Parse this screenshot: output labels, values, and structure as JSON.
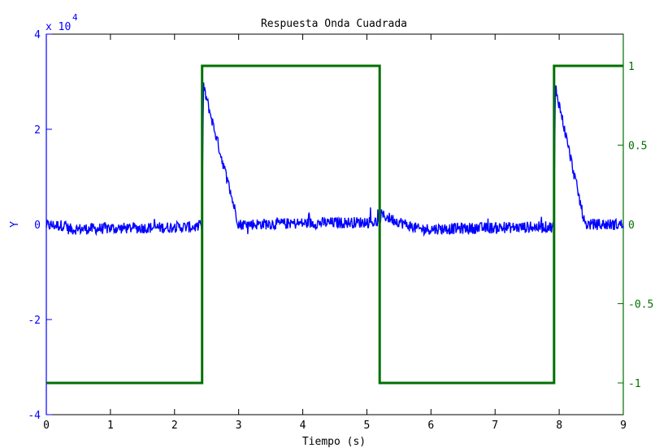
{
  "chart_data": {
    "type": "line",
    "title": "Respuesta Onda Cuadrada",
    "xlabel": "Tiempo (s)",
    "ylabel": "Y",
    "y_exponent": {
      "base": "x 10",
      "power": "4"
    },
    "xlim": [
      0,
      9
    ],
    "ylim_left": [
      -4,
      4
    ],
    "ylim_right": [
      -1.2,
      1.2
    ],
    "x_ticks": [
      0,
      1,
      2,
      3,
      4,
      5,
      6,
      7,
      8,
      9
    ],
    "x_tick_labels": [
      "0",
      "1",
      "2",
      "3",
      "4",
      "5",
      "6",
      "7",
      "8",
      "9"
    ],
    "y_left_ticks": [
      -4,
      -2,
      0,
      2,
      4
    ],
    "y_left_tick_labels": [
      "-4",
      "-2",
      "0",
      "2",
      "4"
    ],
    "y_right_ticks": [
      -1,
      -0.5,
      0,
      0.5,
      1
    ],
    "y_right_tick_labels": [
      "-1",
      "-0.5",
      "0",
      "0.5",
      "1"
    ],
    "grid": false,
    "legend": "none",
    "colors": {
      "response": "#0000ff",
      "square_wave": "#007000",
      "axes": "#000000"
    },
    "series": [
      {
        "axis": "right",
        "kind": "step",
        "x": [
          0,
          2.43,
          2.43,
          5.2,
          5.2,
          7.92,
          7.92,
          9
        ],
        "y": [
          -1,
          -1,
          1,
          1,
          -1,
          -1,
          1,
          1
        ]
      },
      {
        "axis": "left",
        "kind": "noisy",
        "base_x": [
          0,
          0.3,
          0.35,
          2.43,
          2.45,
          3.0,
          5.2,
          5.22,
          5.8,
          7.92,
          7.94,
          8.4,
          9
        ],
        "base_y": [
          -0.02,
          -0.02,
          -0.1,
          -0.05,
          2.9,
          0.0,
          0.05,
          0.2,
          -0.1,
          -0.05,
          2.9,
          0.0,
          0.0
        ],
        "amplitude": 0.12,
        "samples": 1100
      }
    ]
  }
}
